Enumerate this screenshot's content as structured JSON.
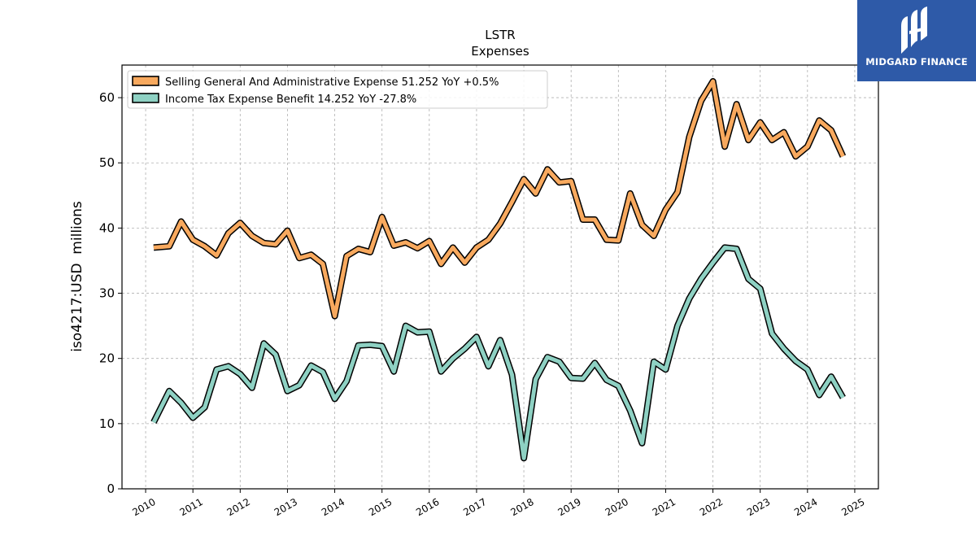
{
  "chart_data": {
    "type": "line",
    "title": "LSTR",
    "subtitle": "Expenses",
    "ylabel": "iso4217:USD  millions",
    "xlabel": "",
    "ylim": [
      0,
      65
    ],
    "xlim": [
      2009.5,
      2025.5
    ],
    "grid": true,
    "legend_position": "top-left",
    "y_ticks": [
      0,
      10,
      20,
      30,
      40,
      50,
      60
    ],
    "x_ticks": [
      2010,
      2011,
      2012,
      2013,
      2014,
      2015,
      2016,
      2017,
      2018,
      2019,
      2020,
      2021,
      2022,
      2023,
      2024,
      2025
    ],
    "series": [
      {
        "name": "Selling General And Administrative Expense  51.252 YoY +0.5%",
        "color": "#f8a95e",
        "x": [
          2010.17,
          2010.5,
          2010.75,
          2011.0,
          2011.25,
          2011.5,
          2011.75,
          2012.0,
          2012.25,
          2012.5,
          2012.75,
          2013.0,
          2013.25,
          2013.5,
          2013.75,
          2014.0,
          2014.25,
          2014.5,
          2014.75,
          2015.0,
          2015.25,
          2015.5,
          2015.75,
          2016.0,
          2016.25,
          2016.5,
          2016.75,
          2017.0,
          2017.25,
          2017.5,
          2017.75,
          2018.0,
          2018.25,
          2018.5,
          2018.75,
          2019.0,
          2019.25,
          2019.5,
          2019.75,
          2020.0,
          2020.25,
          2020.5,
          2020.75,
          2021.0,
          2021.25,
          2021.5,
          2021.75,
          2022.0,
          2022.25,
          2022.5,
          2022.75,
          2023.0,
          2023.25,
          2023.5,
          2023.75,
          2024.0,
          2024.25,
          2024.5,
          2024.75
        ],
        "values": [
          37.0,
          37.2,
          41.0,
          38.2,
          37.2,
          35.8,
          39.2,
          40.8,
          38.8,
          37.7,
          37.5,
          39.6,
          35.4,
          35.9,
          34.5,
          26.5,
          35.7,
          36.8,
          36.3,
          41.7,
          37.3,
          37.8,
          36.9,
          38.0,
          34.5,
          37.0,
          34.7,
          37.0,
          38.2,
          40.7,
          44.0,
          47.5,
          45.3,
          49.0,
          47.0,
          47.2,
          41.3,
          41.3,
          38.2,
          38.1,
          45.3,
          40.5,
          38.8,
          42.8,
          45.5,
          54.0,
          59.5,
          62.5,
          52.5,
          59.0,
          53.5,
          56.2,
          53.5,
          54.7,
          51.0,
          52.5,
          56.5,
          55.0,
          51.0
        ]
      },
      {
        "name": "Income Tax Expense Benefit  14.252 YoY -27.8%",
        "color": "#8ed1c3",
        "x": [
          2010.17,
          2010.5,
          2010.75,
          2011.0,
          2011.25,
          2011.5,
          2011.75,
          2012.0,
          2012.25,
          2012.5,
          2012.75,
          2013.0,
          2013.25,
          2013.5,
          2013.75,
          2014.0,
          2014.25,
          2014.5,
          2014.75,
          2015.0,
          2015.25,
          2015.5,
          2015.75,
          2016.0,
          2016.25,
          2016.5,
          2016.75,
          2017.0,
          2017.25,
          2017.5,
          2017.75,
          2018.0,
          2018.25,
          2018.5,
          2018.75,
          2019.0,
          2019.25,
          2019.5,
          2019.75,
          2020.0,
          2020.25,
          2020.5,
          2020.75,
          2021.0,
          2021.25,
          2021.5,
          2021.75,
          2022.0,
          2022.25,
          2022.5,
          2022.75,
          2023.0,
          2023.25,
          2023.5,
          2023.75,
          2024.0,
          2024.25,
          2024.5,
          2024.75
        ],
        "values": [
          10.2,
          15.0,
          13.2,
          10.9,
          12.5,
          18.3,
          18.8,
          17.6,
          15.5,
          22.3,
          20.6,
          15.0,
          15.9,
          18.9,
          17.9,
          13.8,
          16.5,
          22.0,
          22.1,
          21.9,
          18.0,
          25.0,
          24.0,
          24.1,
          18.0,
          20.0,
          21.5,
          23.3,
          18.8,
          22.8,
          17.5,
          4.7,
          16.8,
          20.2,
          19.5,
          17.0,
          16.9,
          19.3,
          16.7,
          15.8,
          12.0,
          7.0,
          19.5,
          18.3,
          25.0,
          29.2,
          32.2,
          34.7,
          37.0,
          36.8,
          32.2,
          30.7,
          23.8,
          21.5,
          19.6,
          18.3,
          14.4,
          17.2,
          14.0
        ]
      }
    ]
  },
  "brand": {
    "name": "MIDGARD FINANCE",
    "icon": "midgard-logo-icon",
    "color": "#2e5aa8"
  }
}
